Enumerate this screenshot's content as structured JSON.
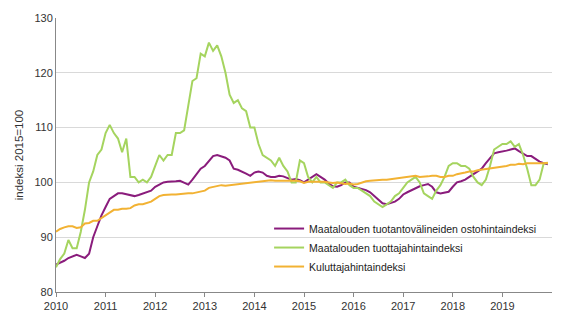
{
  "chart_data": {
    "type": "line",
    "y_label": "indeksi 2015=100",
    "x": [
      2010,
      2010.083,
      2010.167,
      2010.25,
      2010.333,
      2010.417,
      2010.5,
      2010.583,
      2010.667,
      2010.75,
      2010.833,
      2010.917,
      2011,
      2011.083,
      2011.167,
      2011.25,
      2011.333,
      2011.417,
      2011.5,
      2011.583,
      2011.667,
      2011.75,
      2011.833,
      2011.917,
      2012,
      2012.083,
      2012.167,
      2012.25,
      2012.333,
      2012.417,
      2012.5,
      2012.583,
      2012.667,
      2012.75,
      2012.833,
      2012.917,
      2013,
      2013.083,
      2013.167,
      2013.25,
      2013.333,
      2013.417,
      2013.5,
      2013.583,
      2013.667,
      2013.75,
      2013.833,
      2013.917,
      2014,
      2014.083,
      2014.167,
      2014.25,
      2014.333,
      2014.417,
      2014.5,
      2014.583,
      2014.667,
      2014.75,
      2014.833,
      2014.917,
      2015,
      2015.083,
      2015.167,
      2015.25,
      2015.333,
      2015.417,
      2015.5,
      2015.583,
      2015.667,
      2015.75,
      2015.833,
      2015.917,
      2016,
      2016.083,
      2016.167,
      2016.25,
      2016.333,
      2016.417,
      2016.5,
      2016.583,
      2016.667,
      2016.75,
      2016.833,
      2016.917,
      2017,
      2017.083,
      2017.167,
      2017.25,
      2017.333,
      2017.417,
      2017.5,
      2017.583,
      2017.667,
      2017.75,
      2017.833,
      2017.917,
      2018,
      2018.083,
      2018.167,
      2018.25,
      2018.333,
      2018.417,
      2018.5,
      2018.583,
      2018.667,
      2018.75,
      2018.833,
      2018.917,
      2019,
      2019.083,
      2019.167,
      2019.25,
      2019.333,
      2019.417,
      2019.5,
      2019.583,
      2019.667,
      2019.75,
      2019.833,
      2019.917
    ],
    "series": [
      {
        "name": "Maatalouden tuotantovälineiden ostohintaindeksi",
        "color": "#8a1c7c",
        "values": [
          85,
          85.3,
          85.7,
          86.2,
          86.5,
          86.8,
          86.5,
          86.2,
          87,
          90,
          92,
          94,
          95.5,
          97,
          97.5,
          98,
          98,
          97.8,
          97.6,
          97.5,
          97.7,
          98,
          98.3,
          98.5,
          99.2,
          99.6,
          100,
          100.1,
          100.1,
          100.2,
          100.3,
          100,
          99.6,
          100.5,
          101.5,
          102.5,
          103,
          104,
          104.8,
          105,
          104.8,
          104.5,
          104,
          102.5,
          102.3,
          102,
          101.6,
          101.2,
          101.8,
          102,
          101.8,
          101.2,
          101,
          101,
          101.2,
          101.1,
          100.8,
          100.5,
          100.6,
          100.4,
          100,
          100.5,
          101,
          101.5,
          101,
          100.5,
          99.8,
          99.3,
          99.2,
          99.5,
          100,
          100,
          99.2,
          99,
          98.8,
          98.6,
          98.2,
          97.5,
          96.8,
          96.2,
          96,
          96.2,
          96.5,
          97,
          97.8,
          98.2,
          98.6,
          99,
          99.3,
          99.5,
          99.7,
          99.2,
          98.2,
          98,
          98.1,
          98.3,
          99.2,
          100,
          100.2,
          100.5,
          101,
          101.5,
          102,
          102.5,
          103.5,
          104.5,
          105.3,
          105.5,
          105.6,
          105.8,
          106,
          106.2,
          105.7,
          105.2,
          104.8,
          104.8,
          104.3,
          103.8,
          103.5,
          103.3
        ]
      },
      {
        "name": "Maatalouden tuottajahintaindeksi",
        "color": "#a5d45f",
        "values": [
          84.5,
          86,
          87,
          89.5,
          88,
          88,
          91,
          95,
          100,
          102,
          105,
          106,
          109,
          110.5,
          109,
          108,
          105.5,
          108,
          101,
          101,
          100,
          100.5,
          100,
          101,
          103,
          105,
          104,
          105,
          105,
          109,
          109,
          109.5,
          114,
          118.5,
          119,
          123.5,
          123,
          125.5,
          124,
          125,
          123,
          120,
          116,
          114.5,
          115,
          113.5,
          113,
          110,
          110,
          107,
          105,
          104.5,
          104,
          103,
          104.5,
          103,
          102,
          100,
          100,
          104,
          103.5,
          101,
          100,
          101,
          100,
          100,
          99.5,
          99,
          100,
          100,
          100.5,
          99.5,
          99,
          99,
          98.5,
          98,
          97.5,
          96.5,
          96,
          95.5,
          96,
          96.5,
          97.5,
          98,
          99,
          100,
          100.5,
          101,
          100,
          98,
          97.5,
          97,
          98.5,
          99.5,
          101,
          103,
          103.5,
          103.5,
          103,
          103,
          102.5,
          101,
          100,
          99.5,
          100.5,
          103,
          106,
          106.5,
          107,
          107,
          107.5,
          106.5,
          107,
          105,
          102.5,
          99.5,
          99.5,
          100.5,
          103.5,
          103.5
        ]
      },
      {
        "name": "Kuluttajahintaindeksi",
        "color": "#f2b233",
        "values": [
          91,
          91.5,
          91.8,
          92,
          92,
          91.7,
          91.8,
          92.5,
          92.6,
          93,
          93,
          93.5,
          94,
          94.5,
          95,
          95,
          95.2,
          95.2,
          95.3,
          95.8,
          96,
          96,
          96.2,
          96.5,
          97,
          97.5,
          97.7,
          97.8,
          97.8,
          97.8,
          97.9,
          98,
          98,
          98,
          98.2,
          98.3,
          98.5,
          99,
          99.2,
          99.4,
          99.5,
          99.4,
          99.5,
          99.6,
          99.7,
          99.8,
          99.9,
          100,
          100,
          100.2,
          100.3,
          100.3,
          100.4,
          100.3,
          100.3,
          100.4,
          100.4,
          100.3,
          100.3,
          100.2,
          99.9,
          100.1,
          100.1,
          100.2,
          100.2,
          100.1,
          100,
          99.9,
          100,
          99.8,
          99.7,
          99.8,
          99.6,
          99.7,
          100,
          100.2,
          100.3,
          100.4,
          100.5,
          100.5,
          100.5,
          100.6,
          100.6,
          100.8,
          100.8,
          101,
          101.1,
          101.2,
          101,
          101,
          101.1,
          101.2,
          101.2,
          101,
          101,
          101.2,
          101.2,
          101.5,
          101.6,
          101.8,
          102,
          102,
          102.2,
          102.3,
          102.5,
          102.6,
          102.6,
          102.7,
          102.8,
          103,
          103.2,
          103.2,
          103.4,
          103.3,
          103.5,
          103.5,
          103.4,
          103.5,
          103.5,
          103.6
        ]
      }
    ],
    "xlim": [
      2010,
      2020
    ],
    "xticks": [
      2010,
      2011,
      2012,
      2013,
      2014,
      2015,
      2016,
      2017,
      2018,
      2019
    ],
    "ylim": [
      80,
      130
    ],
    "yticks": [
      80,
      90,
      100,
      110,
      120,
      130
    ],
    "grid": true,
    "legend": "lower right"
  }
}
